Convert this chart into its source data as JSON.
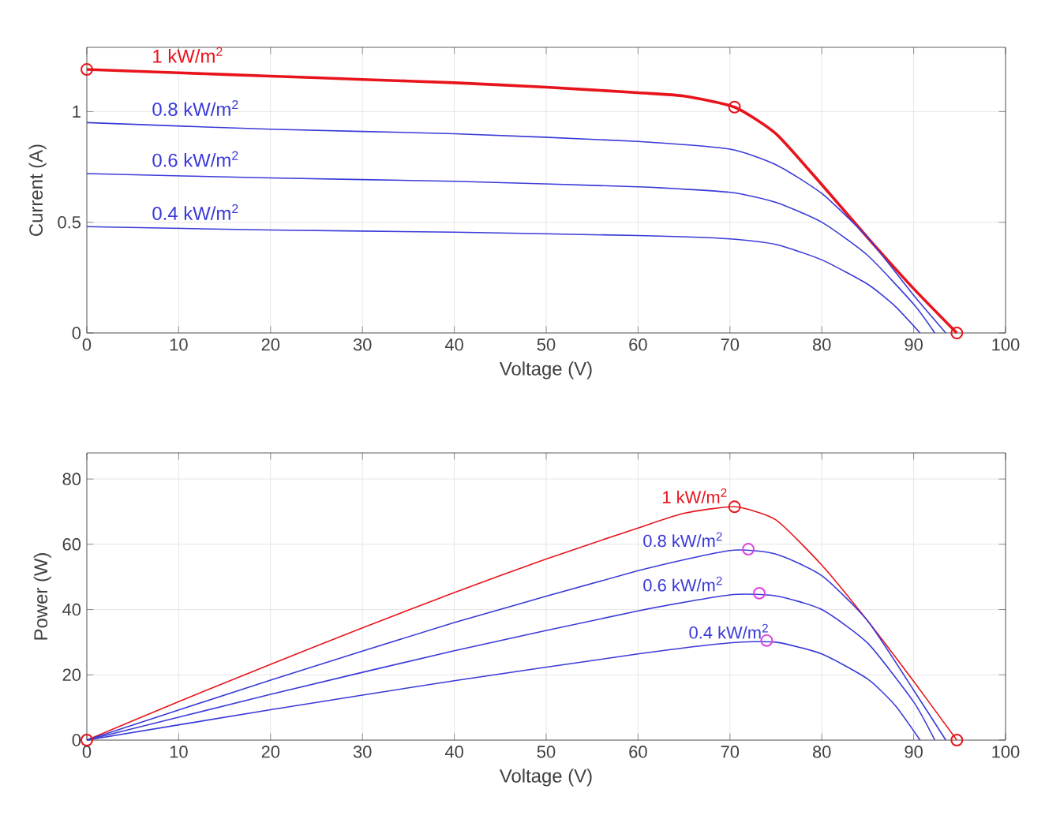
{
  "chart_data": [
    {
      "type": "line",
      "xlabel": "Voltage (V)",
      "ylabel": "Current (A)",
      "xlim": [
        0,
        100
      ],
      "ylim": [
        0,
        1.29
      ],
      "xticks": [
        0,
        10,
        20,
        30,
        40,
        50,
        60,
        70,
        80,
        90,
        100
      ],
      "yticks": [
        0,
        0.5,
        1
      ],
      "grid": true,
      "series": [
        {
          "name": "1 kW/m$^{2}$",
          "color": "#e8141c",
          "x": [
            0,
            10,
            20,
            30,
            40,
            50,
            60,
            65,
            70.5,
            75,
            80,
            85,
            90,
            94.7
          ],
          "values": [
            1.19,
            1.175,
            1.16,
            1.145,
            1.13,
            1.11,
            1.085,
            1.07,
            1.02,
            0.9,
            0.67,
            0.43,
            0.2,
            0
          ]
        },
        {
          "name": "0.8 kW/m$^{2}$",
          "color": "#3a3ad8",
          "x": [
            0,
            20,
            40,
            60,
            70,
            75,
            80,
            85,
            90,
            93.5
          ],
          "values": [
            0.95,
            0.92,
            0.9,
            0.865,
            0.83,
            0.76,
            0.63,
            0.43,
            0.17,
            0
          ]
        },
        {
          "name": "0.6 kW/m$^{2}$",
          "color": "#3a3ad8",
          "x": [
            0,
            20,
            40,
            60,
            70,
            75,
            80,
            85,
            90,
            92.3
          ],
          "values": [
            0.72,
            0.7,
            0.685,
            0.66,
            0.635,
            0.59,
            0.5,
            0.35,
            0.13,
            0
          ]
        },
        {
          "name": "0.4 kW/m$^{2}$",
          "color": "#3a3ad8",
          "x": [
            0,
            20,
            40,
            60,
            70,
            75,
            80,
            85,
            88,
            90.7
          ],
          "values": [
            0.48,
            0.465,
            0.455,
            0.44,
            0.425,
            0.4,
            0.33,
            0.22,
            0.12,
            0
          ]
        },
        {
          "type": "scatter",
          "marker": "circle",
          "color": "#e8141c",
          "x": [
            0,
            70.5,
            94.7
          ],
          "values": [
            1.19,
            1.02,
            0
          ]
        }
      ]
    },
    {
      "type": "line",
      "xlabel": "Voltage (V)",
      "ylabel": "Power (W)",
      "xlim": [
        0,
        100
      ],
      "ylim": [
        0,
        88
      ],
      "xticks": [
        0,
        10,
        20,
        30,
        40,
        50,
        60,
        70,
        80,
        90,
        100
      ],
      "yticks": [
        0,
        20,
        40,
        60,
        80
      ],
      "grid": true,
      "series": [
        {
          "name": "1 kW/m$^{2}$",
          "color": "#e8141c",
          "x": [
            0,
            10,
            20,
            30,
            40,
            50,
            60,
            65,
            70.5,
            75,
            80,
            85,
            90,
            94.7
          ],
          "values": [
            0,
            11.8,
            23.2,
            34.4,
            45.2,
            55.5,
            65,
            69.5,
            71.5,
            67.5,
            53.6,
            36.5,
            18,
            0
          ]
        },
        {
          "name": "0.8 kW/m$^{2}$",
          "color": "#3a3ad8",
          "x": [
            0,
            20,
            40,
            60,
            70,
            75,
            80,
            85,
            90,
            93.5
          ],
          "values": [
            0,
            18.4,
            36,
            51.9,
            58.1,
            57,
            50.4,
            36.5,
            15.3,
            0
          ]
        },
        {
          "name": "0.6 kW/m$^{2}$",
          "color": "#3a3ad8",
          "x": [
            0,
            20,
            40,
            60,
            70,
            75,
            80,
            85,
            90,
            92.3
          ],
          "values": [
            0,
            14,
            27.4,
            39.6,
            44.5,
            44.2,
            40,
            29.7,
            11.7,
            0
          ]
        },
        {
          "name": "0.4 kW/m$^{2}$",
          "color": "#3a3ad8",
          "x": [
            0,
            20,
            40,
            60,
            70,
            75,
            80,
            85,
            88,
            90.7
          ],
          "values": [
            0,
            9.3,
            18.2,
            26.4,
            29.8,
            30,
            26.4,
            18.7,
            10.6,
            0
          ]
        },
        {
          "type": "scatter",
          "marker": "circle",
          "color": "#e8141c",
          "x": [
            0,
            70.5,
            94.7
          ],
          "values": [
            0,
            71.5,
            0
          ]
        },
        {
          "type": "scatter",
          "marker": "circle",
          "color": "#e040e0",
          "x": [
            72,
            73.2,
            74
          ],
          "values": [
            58.5,
            45,
            30.5
          ]
        }
      ]
    }
  ]
}
